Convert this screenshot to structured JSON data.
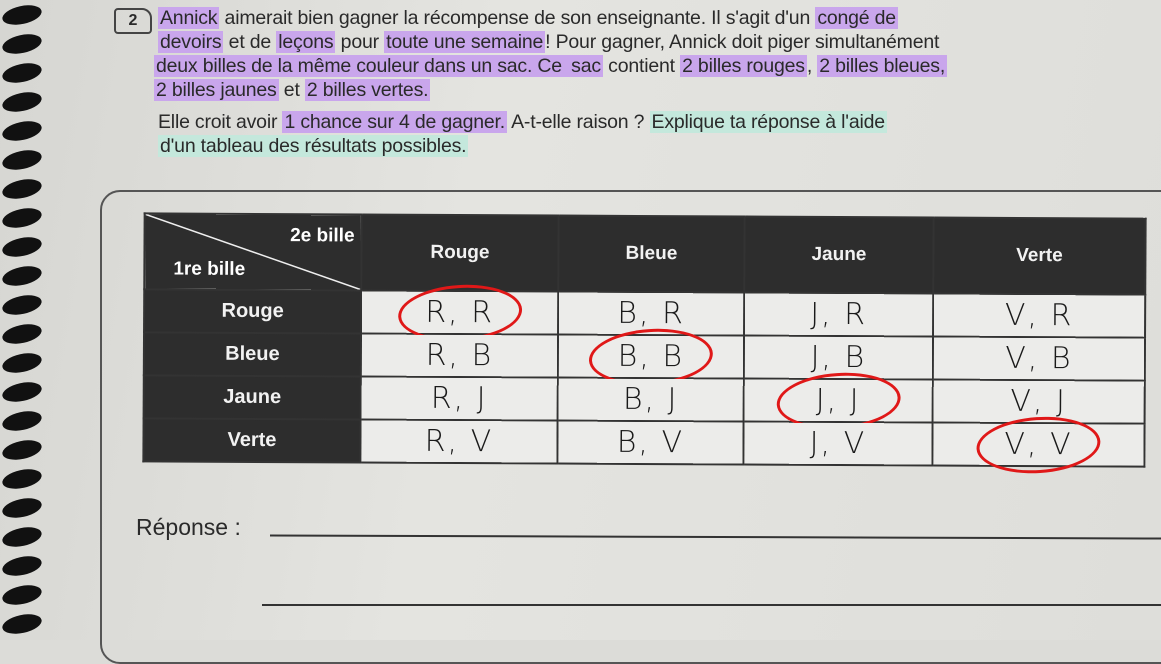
{
  "question_number": "2",
  "paragraph": [
    [
      {
        "t": "Annick",
        "h": "p"
      },
      {
        "t": " aimerait bien gagner la récompense de son enseignante. Il s'agit d'un ",
        "h": ""
      },
      {
        "t": "congé de",
        "h": "p"
      }
    ],
    [
      {
        "t": "devoirs",
        "h": "p"
      },
      {
        "t": " et de ",
        "h": ""
      },
      {
        "t": "leçons",
        "h": "p"
      },
      {
        "t": " pour ",
        "h": ""
      },
      {
        "t": "toute une semaine",
        "h": "p"
      },
      {
        "t": "! Pour gagner, Annick doit piger simultanément",
        "h": ""
      }
    ],
    [
      {
        "t": "deux billes de la même couleur dans un sac. Ce ",
        "h": "p"
      },
      {
        "t": "sac",
        "h": "p"
      },
      {
        "t": " contient ",
        "h": ""
      },
      {
        "t": "2 billes rouges",
        "h": "p"
      },
      {
        "t": ", ",
        "h": ""
      },
      {
        "t": "2 billes bleues,",
        "h": "p"
      }
    ],
    [
      {
        "t": "2 billes jaunes",
        "h": "p"
      },
      {
        "t": " et ",
        "h": ""
      },
      {
        "t": "2 billes vertes.",
        "h": "p"
      }
    ],
    [
      {
        "t": "Elle croit avoir ",
        "h": ""
      },
      {
        "t": "1 chance sur 4 de gagner.",
        "h": "p"
      },
      {
        "t": " A-t-elle raison ? ",
        "h": ""
      },
      {
        "t": "Explique ta réponse à l'aide",
        "h": "g"
      }
    ],
    [
      {
        "t": "d'un tableau des résultats possibles.",
        "h": "g"
      }
    ]
  ],
  "highlight_colors": {
    "p": "#c9a6ec",
    "g": "#c4e8dc"
  },
  "table": {
    "corner_top": "2e bille",
    "corner_bottom": "1re bille",
    "columns": [
      "Rouge",
      "Bleue",
      "Jaune",
      "Verte"
    ],
    "rows": [
      {
        "label": "Rouge",
        "cells": [
          "R, R",
          "B, R",
          "J, R",
          "V, R"
        ]
      },
      {
        "label": "Bleue",
        "cells": [
          "R, B",
          "B, B",
          "J, B",
          "V, B"
        ]
      },
      {
        "label": "Jaune",
        "cells": [
          "R, J",
          "B, J",
          "J, J",
          "V, J"
        ]
      },
      {
        "label": "Verte",
        "cells": [
          "R, V",
          "B, V",
          "J, V",
          "V, V"
        ]
      }
    ],
    "circled_color": "#e01818"
  },
  "response_label": "Réponse :"
}
